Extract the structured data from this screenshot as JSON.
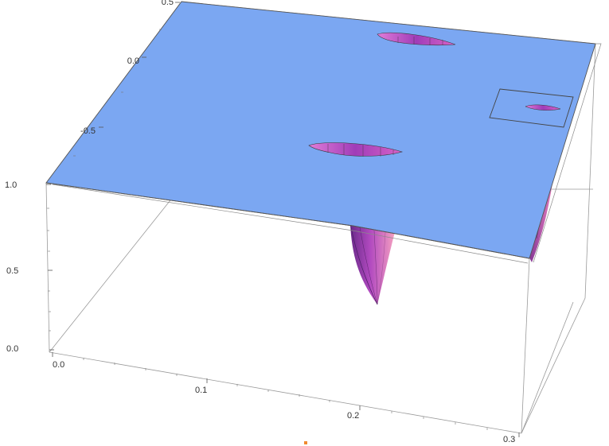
{
  "chart_data": {
    "type": "surface3d",
    "x_axis": {
      "range": [
        0.0,
        0.3
      ],
      "ticks": [
        "0.0",
        "0.1",
        "0.2",
        "0.3"
      ]
    },
    "y_axis": {
      "ticks": [
        "-0.5",
        "0.0",
        "0.5"
      ]
    },
    "z_axis": {
      "range": [
        0.0,
        1.0
      ],
      "ticks": [
        "0.0",
        "0.5",
        "1.0"
      ]
    },
    "surface_level": 1.0,
    "box": true,
    "grid": false,
    "colors": {
      "surface": "#7BA7F2",
      "dip_light": "#F08CC8",
      "dip_mid": "#C050C8",
      "dip_dark": "#6A2A8A",
      "inset_box": "#444444"
    }
  }
}
